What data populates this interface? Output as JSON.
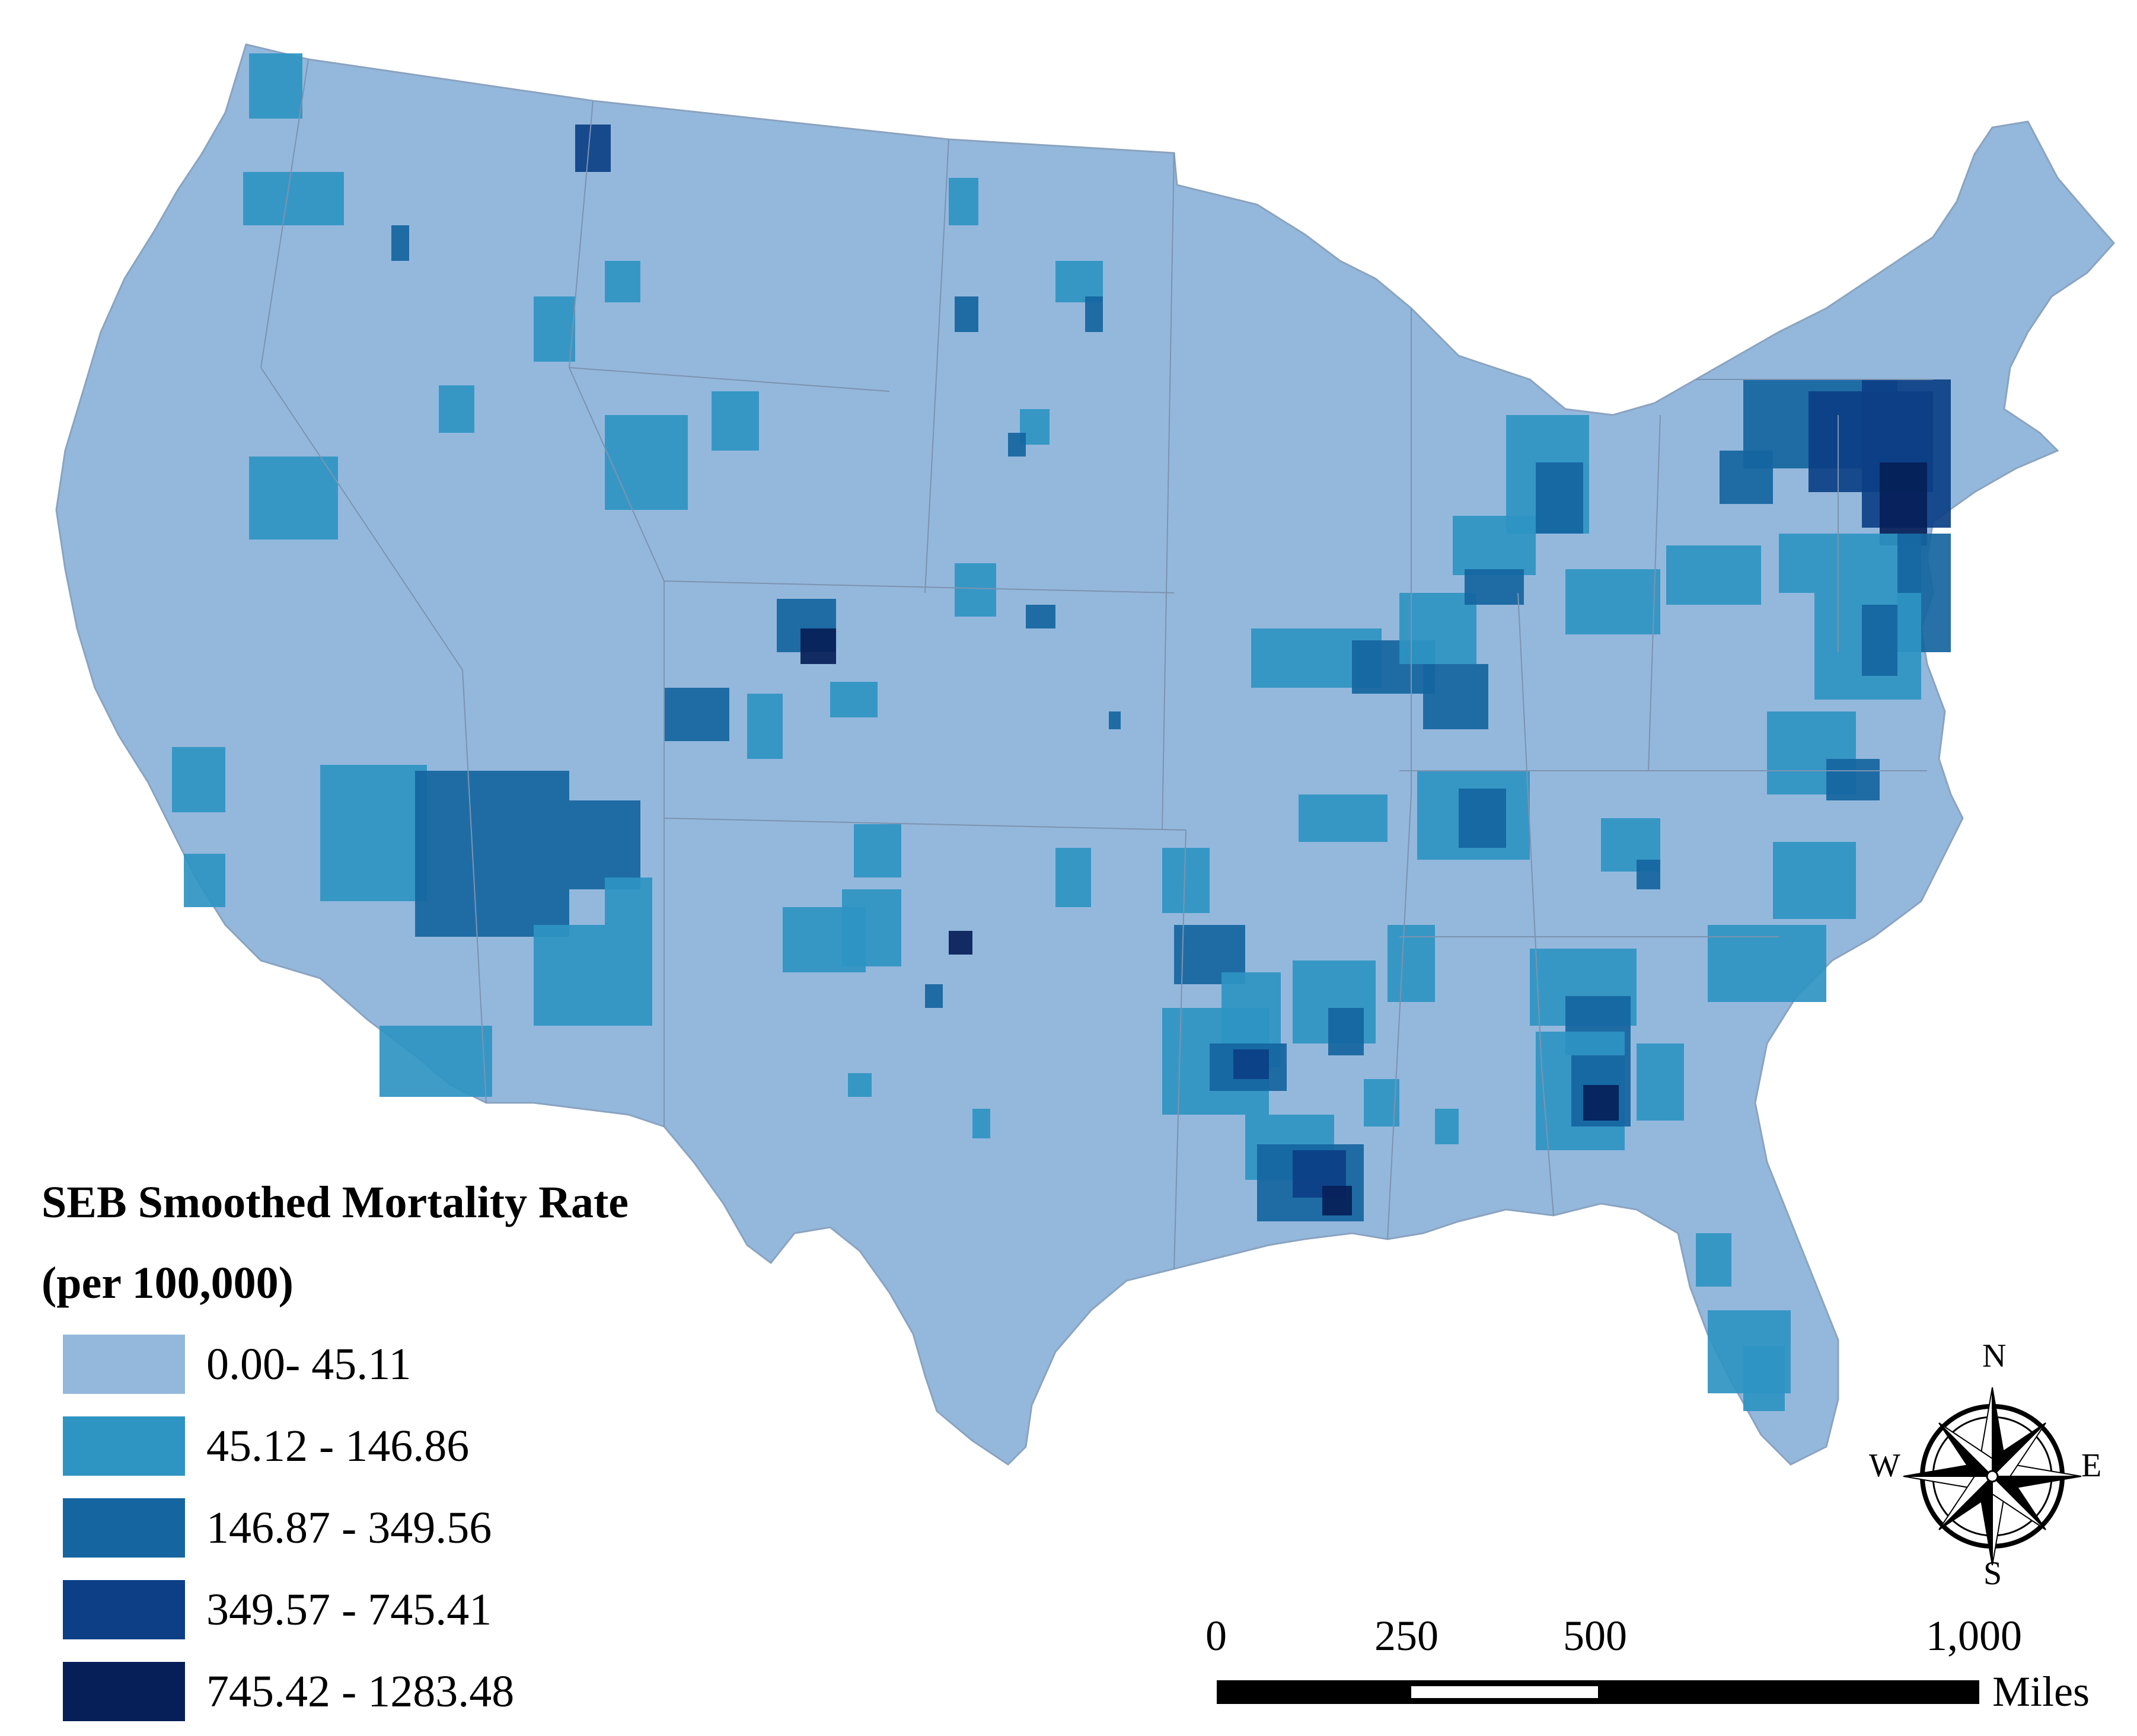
{
  "legend": {
    "title_line1": "SEB Smoothed Mortality Rate",
    "title_line2": "(per 100,000)",
    "classes": [
      {
        "label": "0.00- 45.11",
        "color": "#94B8DC"
      },
      {
        "label": "45.12 - 146.86",
        "color": "#2E94C2"
      },
      {
        "label": "146.87 - 349.56",
        "color": "#1565A0"
      },
      {
        "label": "349.57 - 745.41",
        "color": "#0C3F86"
      },
      {
        "label": "745.42 - 1283.48",
        "color": "#061F58"
      }
    ]
  },
  "scale_bar": {
    "ticks": [
      "0",
      "250",
      "500",
      "1,000"
    ],
    "unit": "Miles"
  },
  "compass": {
    "n": "N",
    "s": "S",
    "e": "E",
    "w": "W"
  },
  "map": {
    "base_color": "#94B8DC",
    "boundary_color": "#8a9fb8",
    "palette": {
      "c1": "#2E94C2",
      "c2": "#1565A0",
      "c3": "#0C3F86",
      "c4": "#061F58"
    }
  }
}
